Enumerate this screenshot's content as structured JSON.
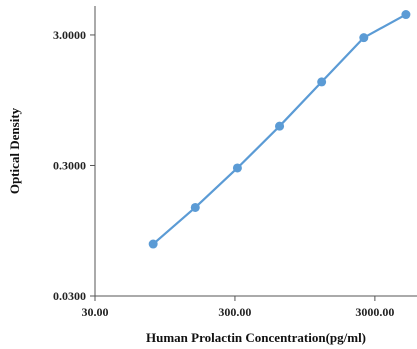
{
  "chart_data": {
    "type": "line",
    "title": "",
    "xlabel": "Human Prolactin Concentration(pg/ml)",
    "ylabel": "Optical Density",
    "x_scale": "log",
    "y_scale": "log",
    "xlim": [
      30,
      6000
    ],
    "ylim": [
      0.03,
      5.0
    ],
    "x_ticks": [
      30,
      300,
      3000
    ],
    "x_tick_labels": [
      "30.00",
      "300.00",
      "3000.00"
    ],
    "y_ticks": [
      0.03,
      0.3,
      3.0
    ],
    "y_tick_labels": [
      "0.0300",
      "0.3000",
      "3.0000"
    ],
    "grid": false,
    "legend": "none",
    "series": [
      {
        "color": "#5B9BD5",
        "x": [
          78.13,
          156.25,
          312.5,
          625,
          1250,
          2500,
          5000
        ],
        "y": [
          0.075,
          0.143,
          0.287,
          0.6,
          1.31,
          2.86,
          4.3
        ]
      }
    ]
  }
}
